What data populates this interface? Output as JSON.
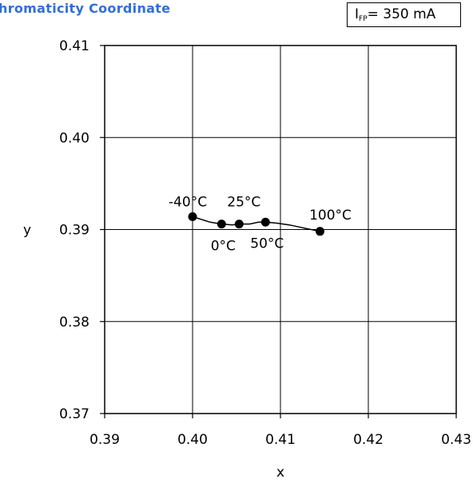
{
  "title": "hromaticity Coordinate",
  "condition": {
    "main": "I",
    "sub": "FP",
    "rest": "= 350 mA"
  },
  "colors": {
    "title": "#2f6fd6",
    "line": "#000000",
    "grid": "#000000",
    "point": "#000000"
  },
  "chart_data": {
    "type": "line",
    "title": "hromaticity Coordinate",
    "xlabel": "x",
    "ylabel": "y",
    "xlim": [
      0.39,
      0.43
    ],
    "ylim": [
      0.37,
      0.41
    ],
    "xticks": [
      "0.39",
      "0.40",
      "0.41",
      "0.42",
      "0.43"
    ],
    "yticks": [
      "0.37",
      "0.38",
      "0.39",
      "0.40",
      "0.41"
    ],
    "grid": true,
    "series": [
      {
        "points": [
          {
            "x": 0.4,
            "y": 0.3914,
            "label": "-40°C"
          },
          {
            "x": 0.4033,
            "y": 0.3906,
            "label": "0°C"
          },
          {
            "x": 0.4053,
            "y": 0.3906,
            "label": "25°C"
          },
          {
            "x": 0.4083,
            "y": 0.3908,
            "label": "50°C"
          },
          {
            "x": 0.4145,
            "y": 0.3898,
            "label": "100°C"
          }
        ],
        "curve": [
          [
            0.4,
            0.3914
          ],
          [
            0.401,
            0.3911
          ],
          [
            0.402,
            0.3908
          ],
          [
            0.4033,
            0.3906
          ],
          [
            0.4045,
            0.3905
          ],
          [
            0.4053,
            0.3906
          ],
          [
            0.4065,
            0.3906
          ],
          [
            0.4075,
            0.3908
          ],
          [
            0.4083,
            0.3908
          ],
          [
            0.4095,
            0.3907
          ],
          [
            0.411,
            0.3905
          ],
          [
            0.4125,
            0.3902
          ],
          [
            0.4145,
            0.3898
          ]
        ]
      }
    ]
  }
}
